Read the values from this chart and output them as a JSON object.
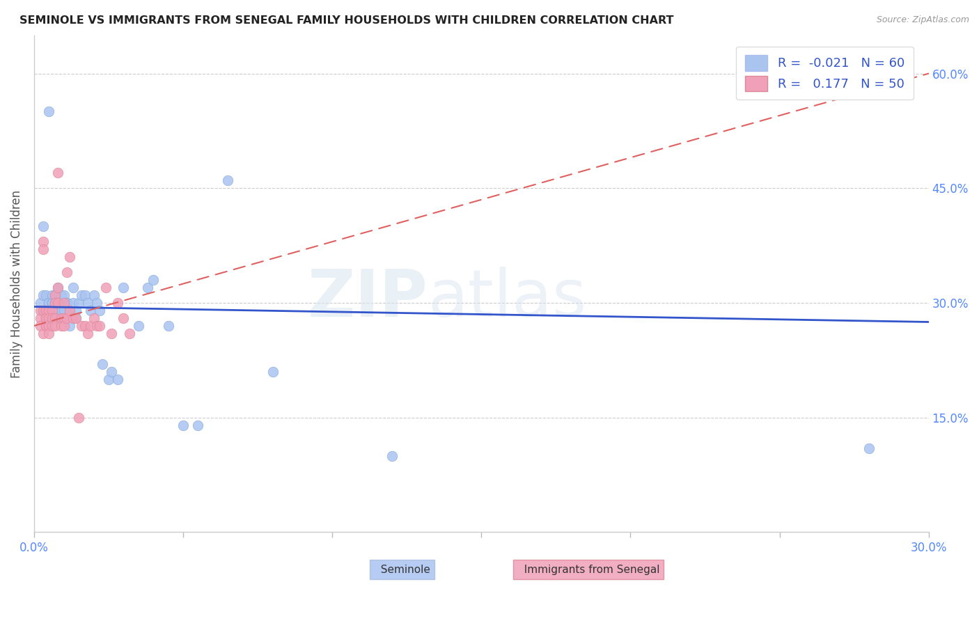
{
  "title": "SEMINOLE VS IMMIGRANTS FROM SENEGAL FAMILY HOUSEHOLDS WITH CHILDREN CORRELATION CHART",
  "source": "Source: ZipAtlas.com",
  "ylabel": "Family Households with Children",
  "r_seminole": -0.021,
  "n_seminole": 60,
  "r_senegal": 0.177,
  "n_senegal": 50,
  "xlim": [
    0.0,
    0.3
  ],
  "ylim": [
    0.0,
    0.65
  ],
  "yticks": [
    0.0,
    0.15,
    0.3,
    0.45,
    0.6
  ],
  "color_seminole": "#aac4f0",
  "color_senegal": "#f0a0b8",
  "color_seminole_line": "#3355cc",
  "color_senegal_line": "#e06060",
  "watermark_zip": "ZIP",
  "watermark_atlas": "atlas",
  "seminole_x": [
    0.002,
    0.003,
    0.003,
    0.003,
    0.004,
    0.004,
    0.005,
    0.005,
    0.005,
    0.005,
    0.006,
    0.006,
    0.006,
    0.006,
    0.007,
    0.007,
    0.007,
    0.007,
    0.007,
    0.008,
    0.008,
    0.008,
    0.008,
    0.009,
    0.009,
    0.009,
    0.01,
    0.01,
    0.01,
    0.011,
    0.011,
    0.012,
    0.012,
    0.013,
    0.013,
    0.014,
    0.014,
    0.015,
    0.016,
    0.017,
    0.018,
    0.019,
    0.02,
    0.021,
    0.022,
    0.023,
    0.025,
    0.026,
    0.028,
    0.03,
    0.035,
    0.038,
    0.04,
    0.045,
    0.05,
    0.055,
    0.065,
    0.08,
    0.12,
    0.28
  ],
  "seminole_y": [
    0.3,
    0.29,
    0.31,
    0.4,
    0.29,
    0.31,
    0.3,
    0.29,
    0.3,
    0.55,
    0.3,
    0.29,
    0.31,
    0.3,
    0.3,
    0.29,
    0.28,
    0.31,
    0.3,
    0.3,
    0.29,
    0.32,
    0.28,
    0.31,
    0.29,
    0.3,
    0.28,
    0.31,
    0.29,
    0.3,
    0.3,
    0.29,
    0.27,
    0.3,
    0.32,
    0.29,
    0.28,
    0.3,
    0.31,
    0.31,
    0.3,
    0.29,
    0.31,
    0.3,
    0.29,
    0.22,
    0.2,
    0.21,
    0.2,
    0.32,
    0.27,
    0.32,
    0.33,
    0.27,
    0.14,
    0.14,
    0.46,
    0.21,
    0.1,
    0.11
  ],
  "senegal_x": [
    0.002,
    0.002,
    0.002,
    0.003,
    0.003,
    0.003,
    0.003,
    0.004,
    0.004,
    0.004,
    0.004,
    0.004,
    0.005,
    0.005,
    0.005,
    0.005,
    0.006,
    0.006,
    0.006,
    0.007,
    0.007,
    0.007,
    0.007,
    0.008,
    0.008,
    0.008,
    0.009,
    0.009,
    0.01,
    0.01,
    0.01,
    0.011,
    0.011,
    0.012,
    0.012,
    0.013,
    0.014,
    0.015,
    0.016,
    0.017,
    0.018,
    0.019,
    0.02,
    0.021,
    0.022,
    0.024,
    0.026,
    0.028,
    0.03,
    0.032
  ],
  "senegal_y": [
    0.29,
    0.28,
    0.27,
    0.38,
    0.37,
    0.29,
    0.26,
    0.28,
    0.27,
    0.29,
    0.28,
    0.27,
    0.29,
    0.28,
    0.27,
    0.26,
    0.29,
    0.28,
    0.27,
    0.31,
    0.3,
    0.28,
    0.27,
    0.47,
    0.32,
    0.3,
    0.28,
    0.27,
    0.3,
    0.28,
    0.27,
    0.34,
    0.28,
    0.36,
    0.29,
    0.28,
    0.28,
    0.15,
    0.27,
    0.27,
    0.26,
    0.27,
    0.28,
    0.27,
    0.27,
    0.32,
    0.26,
    0.3,
    0.28,
    0.26
  ]
}
